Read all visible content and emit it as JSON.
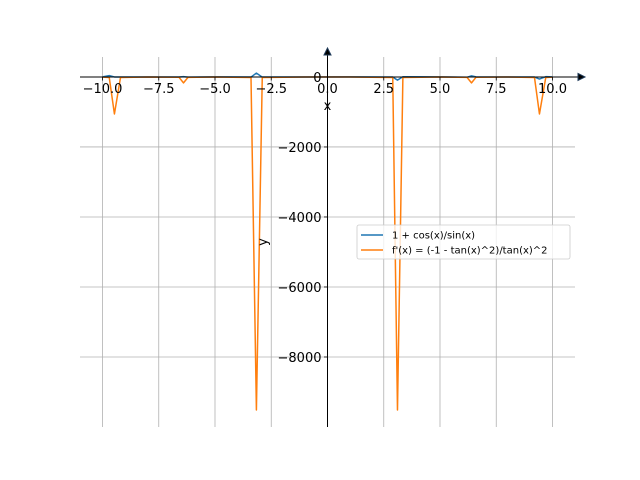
{
  "chart_data": {
    "type": "line",
    "x": [
      -10,
      -9.7,
      -9.47,
      -9.2,
      -8,
      -6.6,
      -6.4,
      -6.2,
      -5,
      -3.4,
      -3.16,
      -2.9,
      -1,
      1,
      2.9,
      3.11,
      3.35,
      5,
      6.2,
      6.4,
      6.6,
      8,
      9.2,
      9.42,
      9.7,
      10
    ],
    "series": [
      {
        "name": "1 + cos(x)/sin(x)",
        "color": "#1f77b4",
        "values": [
          2.5,
          40,
          0.2,
          -3,
          0.1,
          -2.1,
          8,
          -4,
          1.3,
          -2.8,
          110,
          -3.1,
          0.4,
          1.6,
          -3.1,
          -90,
          5,
          0.7,
          -10,
          30,
          3.8,
          -0.1,
          -1.9,
          -60,
          8,
          2.5
        ]
      },
      {
        "name": "f'(x) = (-1 - tan(x)^2)/tan(x)^2",
        "color": "#ff7f0e",
        "values": [
          -3.4,
          -16,
          -1057,
          -15,
          -1,
          -10,
          -170,
          -13,
          -1.1,
          -15,
          -9514,
          -17,
          -1.4,
          -1.4,
          -17,
          -9514,
          -15,
          -1.1,
          -13,
          -170,
          -10,
          -1,
          -15,
          -1057,
          -16,
          -3.4
        ]
      }
    ],
    "xlabel": "x",
    "ylabel": "y",
    "xlim": [
      -11,
      11
    ],
    "ylim": [
      -10000,
      570
    ],
    "xticks": [
      {
        "value": -10,
        "label": "−10.0"
      },
      {
        "value": -7.5,
        "label": "−7.5"
      },
      {
        "value": -5,
        "label": "−5.0"
      },
      {
        "value": -2.5,
        "label": "−2.5"
      },
      {
        "value": 0,
        "label": "0.0"
      },
      {
        "value": 2.5,
        "label": "2.5"
      },
      {
        "value": 5,
        "label": "5.0"
      },
      {
        "value": 7.5,
        "label": "7.5"
      },
      {
        "value": 10,
        "label": "10.0"
      }
    ],
    "yticks": [
      0,
      {
        "value": -2000,
        "label": "−2000"
      },
      {
        "value": -4000,
        "label": "−4000"
      },
      {
        "value": -6000,
        "label": "−6000"
      },
      {
        "value": -8000,
        "label": "−8000"
      }
    ],
    "grid": true,
    "legend": "center right"
  }
}
